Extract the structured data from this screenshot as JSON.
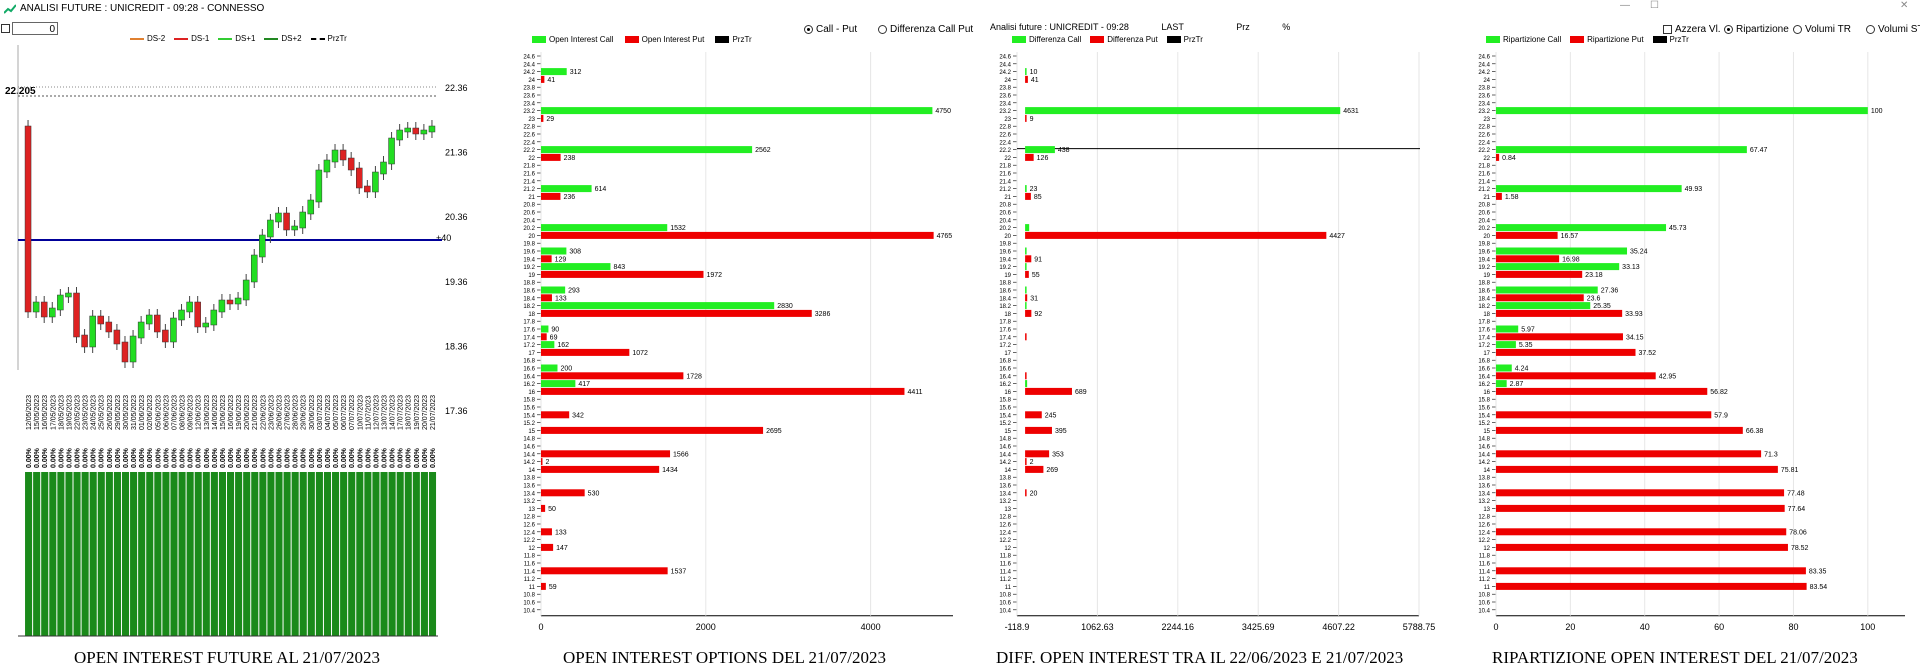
{
  "window": {
    "title": "ANALISI FUTURE : UNICREDIT - 09:28 - CONNESSO"
  },
  "controls": {
    "counter_value": "0"
  },
  "future": {
    "legend": [
      "DS-2",
      "DS-1",
      "DS+1",
      "DS+2",
      "PrzTr"
    ],
    "current_price": "22.205",
    "ref_label": "+40",
    "y_ticks": [
      "22.36",
      "21.36",
      "20.36",
      "19.36",
      "18.36",
      "17.36"
    ],
    "dates": [
      "12/05/2023",
      "15/05/2023",
      "16/05/2023",
      "17/05/2023",
      "18/05/2023",
      "19/05/2023",
      "22/05/2023",
      "23/05/2023",
      "24/05/2023",
      "25/05/2023",
      "26/05/2023",
      "29/05/2023",
      "30/05/2023",
      "31/05/2023",
      "01/06/2023",
      "02/06/2023",
      "05/06/2023",
      "06/06/2023",
      "07/06/2023",
      "08/06/2023",
      "09/06/2023",
      "12/06/2023",
      "13/06/2023",
      "14/06/2023",
      "15/06/2023",
      "16/06/2023",
      "19/06/2023",
      "20/06/2023",
      "21/06/2023",
      "22/06/2023",
      "23/06/2023",
      "26/06/2023",
      "27/06/2023",
      "28/06/2023",
      "29/06/2023",
      "30/06/2023",
      "03/07/2023",
      "04/07/2023",
      "05/07/2023",
      "06/07/2023",
      "07/07/2023",
      "10/07/2023",
      "11/07/2023",
      "12/07/2023",
      "13/07/2023",
      "14/07/2023",
      "17/07/2023",
      "18/07/2023",
      "19/07/2023",
      "20/07/2023",
      "21/07/2023"
    ],
    "oi_label": "0.00%",
    "title": "OPEN INTEREST FUTURE AL 21/07/2023"
  },
  "chart_data": [
    {
      "type": "bar",
      "id": "options",
      "title": "OPEN INTEREST OPTIONS DEL 21/07/2023",
      "legend": [
        "Open Interest Call",
        "Open Interest Put",
        "PrzTr"
      ],
      "radio": {
        "options": [
          "Call - Put",
          "Differenza Call Put"
        ],
        "selected": 0
      },
      "strikes": [
        "24.6",
        "24.4",
        "24.2",
        "24",
        "23.8",
        "23.6",
        "23.4",
        "23.2",
        "23",
        "22.8",
        "22.6",
        "22.4",
        "22.2",
        "22",
        "21.8",
        "21.6",
        "21.4",
        "21.2",
        "21",
        "20.8",
        "20.6",
        "20.4",
        "20.2",
        "20",
        "19.8",
        "19.6",
        "19.4",
        "19.2",
        "19",
        "18.8",
        "18.6",
        "18.4",
        "18.2",
        "18",
        "17.8",
        "17.6",
        "17.4",
        "17.2",
        "17",
        "16.8",
        "16.6",
        "16.4",
        "16.2",
        "16",
        "15.8",
        "15.6",
        "15.4",
        "15.2",
        "15",
        "14.8",
        "14.6",
        "14.4",
        "14.2",
        "14",
        "13.8",
        "13.6",
        "13.4",
        "13.2",
        "13",
        "12.8",
        "12.6",
        "12.4",
        "12.2",
        "12",
        "11.8",
        "11.6",
        "11.4",
        "11.2",
        "11",
        "10.8",
        "10.6",
        "10.4"
      ],
      "call": [
        {
          "strike": "24.2",
          "value": 312
        },
        {
          "strike": "23.2",
          "value": 4750
        },
        {
          "strike": "22.2",
          "value": 2562
        },
        {
          "strike": "21.2",
          "value": 614
        },
        {
          "strike": "20.2",
          "value": 1532
        },
        {
          "strike": "19.6",
          "value": 308
        },
        {
          "strike": "19.2",
          "value": 843
        },
        {
          "strike": "18.6",
          "value": 293
        },
        {
          "strike": "18.2",
          "value": 2830
        },
        {
          "strike": "17.6",
          "value": 90
        },
        {
          "strike": "17.2",
          "value": 162
        },
        {
          "strike": "16.6",
          "value": 200
        },
        {
          "strike": "16.2",
          "value": 417
        }
      ],
      "put": [
        {
          "strike": "24",
          "value": 41
        },
        {
          "strike": "23",
          "value": 29
        },
        {
          "strike": "22",
          "value": 238
        },
        {
          "strike": "21",
          "value": 236
        },
        {
          "strike": "20",
          "value": 4765
        },
        {
          "strike": "19.4",
          "value": 129
        },
        {
          "strike": "19",
          "value": 1972
        },
        {
          "strike": "18.4",
          "value": 133
        },
        {
          "strike": "18",
          "value": 3286
        },
        {
          "strike": "17.4",
          "value": 69
        },
        {
          "strike": "17",
          "value": 1072
        },
        {
          "strike": "16.4",
          "value": 1728
        },
        {
          "strike": "16",
          "value": 4411
        },
        {
          "strike": "15.4",
          "value": 342
        },
        {
          "strike": "15",
          "value": 2695
        },
        {
          "strike": "14.4",
          "value": 1566
        },
        {
          "strike": "14.2",
          "value": 2
        },
        {
          "strike": "14",
          "value": 1434
        },
        {
          "strike": "13.4",
          "value": 530
        },
        {
          "strike": "13",
          "value": 50
        },
        {
          "strike": "12.4",
          "value": 133
        },
        {
          "strike": "12",
          "value": 147
        },
        {
          "strike": "11.4",
          "value": 1537
        },
        {
          "strike": "11",
          "value": 59
        }
      ],
      "x_ticks": [
        "0",
        "2000",
        "4000"
      ],
      "xlim": [
        0,
        5000
      ]
    },
    {
      "type": "bar",
      "id": "diff",
      "title": "DIFF. OPEN INTEREST TRA IL 22/06/2023 E 21/07/2023",
      "header": {
        "name": "Analisi future : UNICREDIT - 09:28",
        "last": "LAST",
        "prz": "Prz",
        "pct": "%"
      },
      "legend": [
        "Differenza Call",
        "Differenza Put",
        "PrzTr"
      ],
      "strikes": [
        "24.6",
        "24.4",
        "24.2",
        "24",
        "23.8",
        "23.6",
        "23.4",
        "23.2",
        "23",
        "22.8",
        "22.6",
        "22.4",
        "22.2",
        "22",
        "21.8",
        "21.6",
        "21.4",
        "21.2",
        "21",
        "20.8",
        "20.6",
        "20.4",
        "20.2",
        "20",
        "19.8",
        "19.6",
        "19.4",
        "19.2",
        "19",
        "18.8",
        "18.6",
        "18.4",
        "18.2",
        "18",
        "17.8",
        "17.6",
        "17.4",
        "17.2",
        "17",
        "16.8",
        "16.6",
        "16.4",
        "16.2",
        "16",
        "15.8",
        "15.6",
        "15.4",
        "15.2",
        "15",
        "14.8",
        "14.6",
        "14.4",
        "14.2",
        "14",
        "13.8",
        "13.6",
        "13.4",
        "13.2",
        "13",
        "12.8",
        "12.6",
        "12.4",
        "12.2",
        "12",
        "11.8",
        "11.6",
        "11.4",
        "11.2",
        "11",
        "10.8",
        "10.6",
        "10.4"
      ],
      "call": [
        {
          "strike": "24.2",
          "value": 10,
          "label": "10"
        },
        {
          "strike": "23.2",
          "value": 4631,
          "label": "4631"
        },
        {
          "strike": "22.2",
          "value": 438,
          "label": "438"
        },
        {
          "strike": "21.2",
          "value": 23,
          "label": "23"
        },
        {
          "strike": "20.2",
          "value": 60,
          "label": ""
        },
        {
          "strike": "19.6",
          "value": 15,
          "label": ""
        },
        {
          "strike": "19.2",
          "value": 10,
          "label": ""
        },
        {
          "strike": "18.6",
          "value": 10,
          "label": ""
        },
        {
          "strike": "18.2",
          "value": 8,
          "label": ""
        },
        {
          "strike": "16.2",
          "value": 30,
          "label": ""
        }
      ],
      "put": [
        {
          "strike": "24",
          "value": 41,
          "label": "41"
        },
        {
          "strike": "23",
          "value": 9,
          "label": "9"
        },
        {
          "strike": "22",
          "value": 126,
          "label": "126"
        },
        {
          "strike": "21",
          "value": 85,
          "label": "85"
        },
        {
          "strike": "20",
          "value": 4427,
          "label": "4427"
        },
        {
          "strike": "19.4",
          "value": 91,
          "label": "91"
        },
        {
          "strike": "19",
          "value": 55,
          "label": "55"
        },
        {
          "strike": "18.4",
          "value": 31,
          "label": "31"
        },
        {
          "strike": "18",
          "value": 92,
          "label": "92"
        },
        {
          "strike": "17.4",
          "value": 15,
          "label": ""
        },
        {
          "strike": "16.4",
          "value": 10,
          "label": ""
        },
        {
          "strike": "16",
          "value": 689,
          "label": "689"
        },
        {
          "strike": "15.4",
          "value": 245,
          "label": "245"
        },
        {
          "strike": "15",
          "value": 395,
          "label": "395"
        },
        {
          "strike": "14.4",
          "value": 353,
          "label": "353"
        },
        {
          "strike": "14.2",
          "value": 2,
          "label": "2"
        },
        {
          "strike": "14",
          "value": 269,
          "label": "269"
        },
        {
          "strike": "13.4",
          "value": 20,
          "label": "20"
        }
      ],
      "x_ticks": [
        "-118.9",
        "1062.63",
        "2244.16",
        "3425.69",
        "4607.22",
        "5788.75"
      ],
      "xlim": [
        -118.9,
        5788.75
      ]
    },
    {
      "type": "bar",
      "id": "ripartizione",
      "title": "RIPARTIZIONE OPEN INTEREST DEL 21/07/2023",
      "legend": [
        "Ripartizione Call",
        "Ripartizione Put",
        "PrzTr"
      ],
      "options": [
        {
          "label": "Azzera Vl.",
          "kind": "check"
        },
        {
          "label": "Ripartizione",
          "kind": "radio",
          "on": true
        },
        {
          "label": "Volumi TR",
          "kind": "radio"
        },
        {
          "label": "Volumi ST",
          "kind": "radio"
        }
      ],
      "strikes": [
        "24.6",
        "24.4",
        "24.2",
        "24",
        "23.8",
        "23.6",
        "23.4",
        "23.2",
        "23",
        "22.8",
        "22.6",
        "22.4",
        "22.2",
        "22",
        "21.8",
        "21.6",
        "21.4",
        "21.2",
        "21",
        "20.8",
        "20.6",
        "20.4",
        "20.2",
        "20",
        "19.8",
        "19.6",
        "19.4",
        "19.2",
        "19",
        "18.8",
        "18.6",
        "18.4",
        "18.2",
        "18",
        "17.8",
        "17.6",
        "17.4",
        "17.2",
        "17",
        "16.8",
        "16.6",
        "16.4",
        "16.2",
        "16",
        "15.8",
        "15.6",
        "15.4",
        "15.2",
        "15",
        "14.8",
        "14.6",
        "14.4",
        "14.2",
        "14",
        "13.8",
        "13.6",
        "13.4",
        "13.2",
        "13",
        "12.8",
        "12.6",
        "12.4",
        "12.2",
        "12",
        "11.8",
        "11.6",
        "11.4",
        "11.2",
        "11",
        "10.8",
        "10.6",
        "10.4"
      ],
      "call": [
        {
          "strike": "23.2",
          "value": 100
        },
        {
          "strike": "22.2",
          "value": 67.47
        },
        {
          "strike": "21.2",
          "value": 49.93
        },
        {
          "strike": "20.2",
          "value": 45.73
        },
        {
          "strike": "19.6",
          "value": 35.24
        },
        {
          "strike": "19.2",
          "value": 33.13
        },
        {
          "strike": "18.6",
          "value": 27.36
        },
        {
          "strike": "18.2",
          "value": 25.35
        },
        {
          "strike": "17.6",
          "value": 5.97
        },
        {
          "strike": "17.2",
          "value": 5.35
        },
        {
          "strike": "16.6",
          "value": 4.24
        },
        {
          "strike": "16.2",
          "value": 2.87
        }
      ],
      "put": [
        {
          "strike": "22",
          "value": 0.84
        },
        {
          "strike": "21",
          "value": 1.58
        },
        {
          "strike": "20",
          "value": 16.57
        },
        {
          "strike": "19.4",
          "value": 16.98
        },
        {
          "strike": "19",
          "value": 23.18
        },
        {
          "strike": "18.4",
          "value": 23.6
        },
        {
          "strike": "18",
          "value": 33.93
        },
        {
          "strike": "17.4",
          "value": 34.15
        },
        {
          "strike": "17",
          "value": 37.52
        },
        {
          "strike": "16.4",
          "value": 42.95
        },
        {
          "strike": "16",
          "value": 56.82
        },
        {
          "strike": "15.4",
          "value": 57.9
        },
        {
          "strike": "15",
          "value": 66.38
        },
        {
          "strike": "14.4",
          "value": 71.3
        },
        {
          "strike": "14",
          "value": 75.81
        },
        {
          "strike": "13.4",
          "value": 77.48
        },
        {
          "strike": "13",
          "value": 77.64
        },
        {
          "strike": "12.4",
          "value": 78.06
        },
        {
          "strike": "12",
          "value": 78.52
        },
        {
          "strike": "11.4",
          "value": 83.35
        },
        {
          "strike": "11",
          "value": 83.54
        }
      ],
      "x_ticks": [
        "0",
        "20",
        "40",
        "60",
        "80",
        "100"
      ],
      "xlim": [
        0,
        110
      ]
    }
  ],
  "colors": {
    "call": "#22ee22",
    "put": "#ee0000",
    "candle_up": "#22dd22",
    "candle_down": "#dd2222",
    "oi_bar": "#1a8a1a",
    "ref_line": "#000099",
    "ds_m2": "#e08030",
    "ds_m1": "#dd2222",
    "ds_p1": "#33cc33",
    "ds_p2": "#228822"
  }
}
